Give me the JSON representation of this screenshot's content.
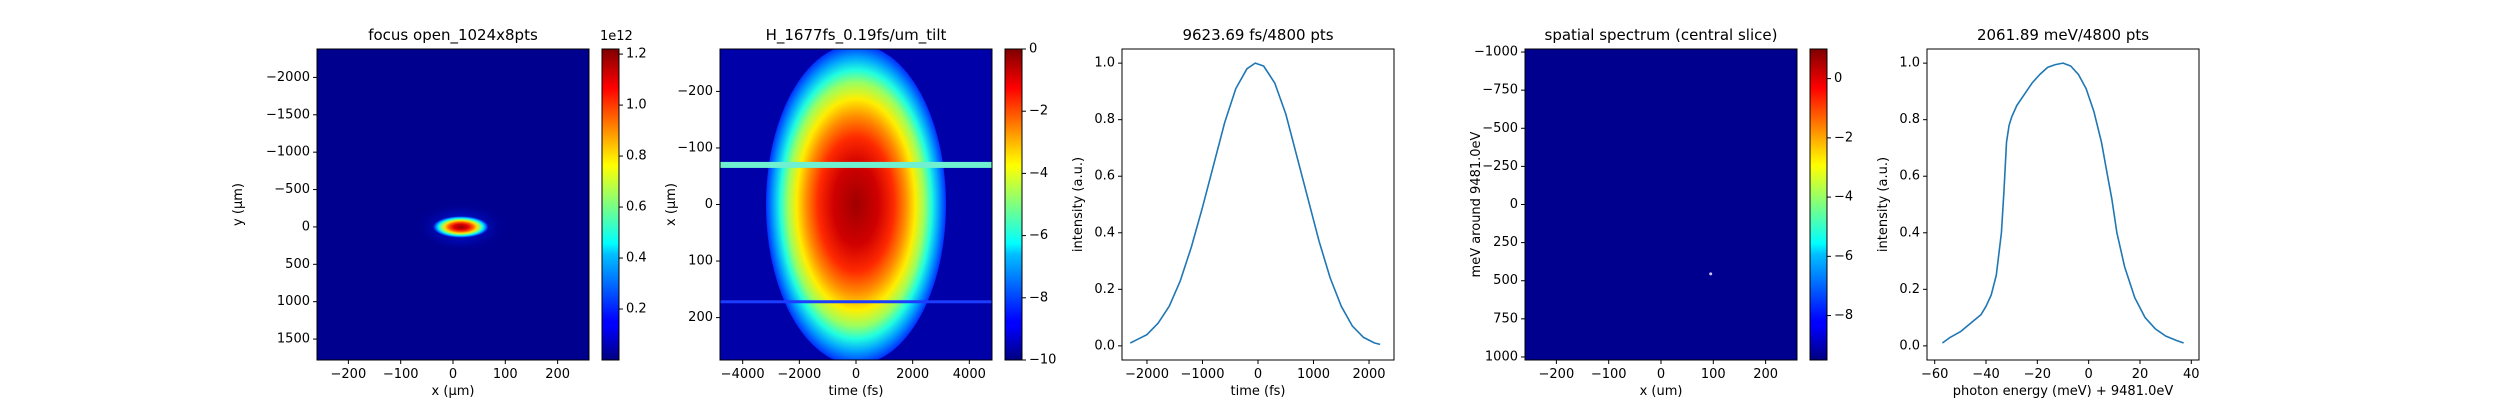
{
  "chart_data": [
    {
      "type": "heatmap",
      "title": "focus open_1024x8pts",
      "xlabel": "x (μm)",
      "ylabel": "y (μm)",
      "xlim": [
        -260,
        260
      ],
      "ylim": [
        1780,
        -2380
      ],
      "x_ticks": [
        -200,
        -100,
        0,
        100,
        200
      ],
      "y_ticks": [
        -2000,
        -1500,
        -1000,
        -500,
        0,
        500,
        1000,
        1500
      ],
      "y_inverted": true,
      "background_color": "#00008f",
      "colormap": "jet",
      "colorbar": {
        "range": [
          0,
          1.22
        ],
        "ticks": [
          0.2,
          0.4,
          0.6,
          0.8,
          1.0,
          1.2
        ],
        "tick_labels": [
          "0.2",
          "0.4",
          "0.6",
          "0.8",
          "1.0",
          "1.2"
        ],
        "exponent_label": "1e12"
      },
      "feature": {
        "description": "bright spot",
        "center": [
          15,
          0
        ],
        "half_width_x": 55,
        "half_width_y": 150,
        "peak": 1.22
      }
    },
    {
      "type": "heatmap",
      "title": "H_1677fs_0.19fs/um_tilt",
      "xlabel": "time (fs)",
      "ylabel": "x (μm)",
      "xlim": [
        -4800,
        4800
      ],
      "ylim": [
        275,
        -275
      ],
      "x_ticks": [
        -4000,
        -2000,
        0,
        2000,
        4000
      ],
      "y_ticks": [
        -200,
        -100,
        0,
        100,
        200
      ],
      "y_inverted": true,
      "colormap": "jet",
      "colorbar": {
        "range": [
          -10,
          0
        ],
        "ticks": [
          0,
          -2,
          -4,
          -6,
          -8,
          -10
        ],
        "tick_labels": [
          "0",
          "−2",
          "−4",
          "−6",
          "−8",
          "−10"
        ]
      },
      "streaks": [
        {
          "x_um": -70,
          "color": "#6ff0d0"
        },
        {
          "x_um": 172,
          "color": "#1c3cff"
        }
      ]
    },
    {
      "type": "line",
      "title": "9623.69 fs/4800 pts",
      "xlabel": "time (fs)",
      "ylabel": "intensity (a.u.)",
      "xlim": [
        -2450,
        2450
      ],
      "ylim": [
        -0.05,
        1.05
      ],
      "x_ticks": [
        -2000,
        -1000,
        0,
        1000,
        2000
      ],
      "y_ticks": [
        0.0,
        0.2,
        0.4,
        0.6,
        0.8,
        1.0
      ],
      "y_tick_labels": [
        "0.0",
        "0.2",
        "0.4",
        "0.6",
        "0.8",
        "1.0"
      ],
      "series": [
        {
          "color": "#1f77b4",
          "x": [
            -2300,
            -2200,
            -2000,
            -1800,
            -1600,
            -1400,
            -1200,
            -1000,
            -800,
            -600,
            -400,
            -200,
            -50,
            100,
            300,
            500,
            700,
            900,
            1100,
            1300,
            1500,
            1700,
            1900,
            2100,
            2200
          ],
          "y": [
            0.01,
            0.02,
            0.04,
            0.08,
            0.14,
            0.23,
            0.35,
            0.49,
            0.64,
            0.79,
            0.91,
            0.98,
            1.0,
            0.99,
            0.93,
            0.82,
            0.67,
            0.52,
            0.37,
            0.24,
            0.14,
            0.07,
            0.03,
            0.01,
            0.005
          ]
        }
      ]
    },
    {
      "type": "heatmap",
      "title": "spatial spectrum (central slice)",
      "xlabel": "x (um)",
      "ylabel": "meV around 9481.0eV",
      "xlim": [
        -260,
        260
      ],
      "ylim": [
        1020,
        -1020
      ],
      "x_ticks": [
        -200,
        -100,
        0,
        100,
        200
      ],
      "y_ticks": [
        1000,
        750,
        500,
        250,
        0,
        -250,
        -500,
        -750,
        -1000
      ],
      "background_color": "#00008f",
      "colormap": "jet",
      "colorbar": {
        "range": [
          -9.5,
          1
        ],
        "ticks": [
          0,
          -2,
          -4,
          -6,
          -8
        ],
        "tick_labels": [
          "0",
          "−2",
          "−4",
          "−6",
          "−8"
        ]
      },
      "feature": {
        "description": "single bright point",
        "x": 95,
        "y": 455
      }
    },
    {
      "type": "line",
      "title": "2061.89 meV/4800 pts",
      "xlabel": "photon energy (meV) + 9481.0eV",
      "ylabel": "intensity (a.u.)",
      "xlim": [
        -63,
        43
      ],
      "ylim": [
        -0.05,
        1.05
      ],
      "x_ticks": [
        -60,
        -40,
        -20,
        0,
        20,
        40
      ],
      "y_ticks": [
        0.0,
        0.2,
        0.4,
        0.6,
        0.8,
        1.0
      ],
      "y_tick_labels": [
        "0.0",
        "0.2",
        "0.4",
        "0.6",
        "0.8",
        "1.0"
      ],
      "series": [
        {
          "color": "#1f77b4",
          "x": [
            -57,
            -54,
            -50,
            -46,
            -42,
            -40,
            -38,
            -36,
            -34,
            -33,
            -32,
            -31,
            -30,
            -28,
            -25,
            -22,
            -19,
            -16,
            -13,
            -10,
            -7,
            -4,
            -1,
            2,
            5,
            7,
            9,
            11,
            14,
            18,
            22,
            26,
            30,
            34,
            37
          ],
          "y": [
            0.01,
            0.03,
            0.05,
            0.08,
            0.11,
            0.14,
            0.18,
            0.25,
            0.4,
            0.55,
            0.72,
            0.78,
            0.81,
            0.85,
            0.89,
            0.93,
            0.96,
            0.985,
            0.995,
            1.0,
            0.99,
            0.96,
            0.91,
            0.83,
            0.72,
            0.62,
            0.52,
            0.4,
            0.28,
            0.17,
            0.1,
            0.06,
            0.035,
            0.02,
            0.01
          ]
        }
      ]
    }
  ]
}
